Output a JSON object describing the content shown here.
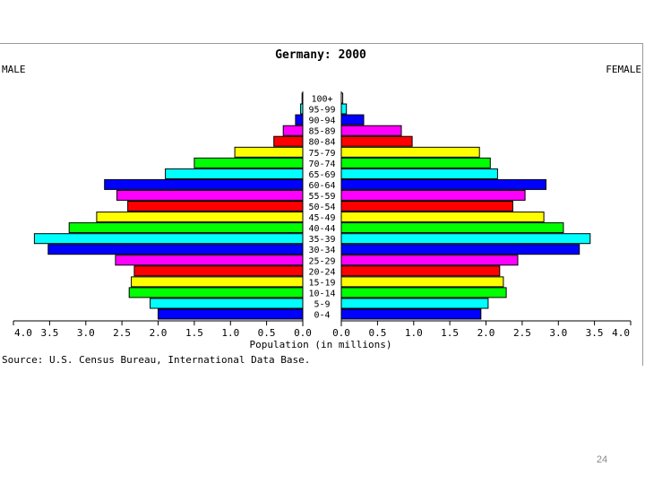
{
  "slide_number": "24",
  "chart_data": {
    "type": "bar",
    "orientation": "horizontal",
    "layout": "population-pyramid",
    "title": "Germany: 2000",
    "left_label": "MALE",
    "right_label": "FEMALE",
    "xlabel": "Population (in millions)",
    "source": "Source: U.S. Census Bureau, International Data Base.",
    "xlim": [
      0,
      4.0
    ],
    "x_ticks": [
      "4.0",
      "3.5",
      "3.0",
      "2.5",
      "2.0",
      "1.5",
      "1.0",
      "0.5",
      "0.0",
      "0.0",
      "0.5",
      "1.0",
      "1.5",
      "2.0",
      "2.5",
      "3.0",
      "3.5",
      "4.0"
    ],
    "categories": [
      "100+",
      "95-99",
      "90-94",
      "85-89",
      "80-84",
      "75-79",
      "70-74",
      "65-69",
      "60-64",
      "55-59",
      "50-54",
      "45-49",
      "40-44",
      "35-39",
      "30-34",
      "25-29",
      "20-24",
      "15-19",
      "10-14",
      "5-9",
      "0-4"
    ],
    "colors": [
      "#ffffff",
      "#00ffff",
      "#0000ff",
      "#ff00ff",
      "#ff0000",
      "#ffff00",
      "#00ff00",
      "#00ffff",
      "#0000ff",
      "#ff00ff",
      "#ff0000",
      "#ffff00",
      "#00ff00",
      "#00ffff",
      "#0000ff",
      "#ff00ff",
      "#ff0000",
      "#ffff00",
      "#00ff00",
      "#00ffff",
      "#0000ff"
    ],
    "series": [
      {
        "name": "MALE",
        "values": [
          0.01,
          0.03,
          0.1,
          0.27,
          0.4,
          0.94,
          1.5,
          1.9,
          2.74,
          2.57,
          2.42,
          2.85,
          3.23,
          3.71,
          3.52,
          2.59,
          2.33,
          2.37,
          2.4,
          2.11,
          2.0
        ]
      },
      {
        "name": "FEMALE",
        "values": [
          0.02,
          0.07,
          0.31,
          0.83,
          0.98,
          1.91,
          2.06,
          2.16,
          2.83,
          2.54,
          2.37,
          2.8,
          3.07,
          3.44,
          3.29,
          2.44,
          2.19,
          2.24,
          2.28,
          2.03,
          1.93
        ]
      }
    ]
  }
}
